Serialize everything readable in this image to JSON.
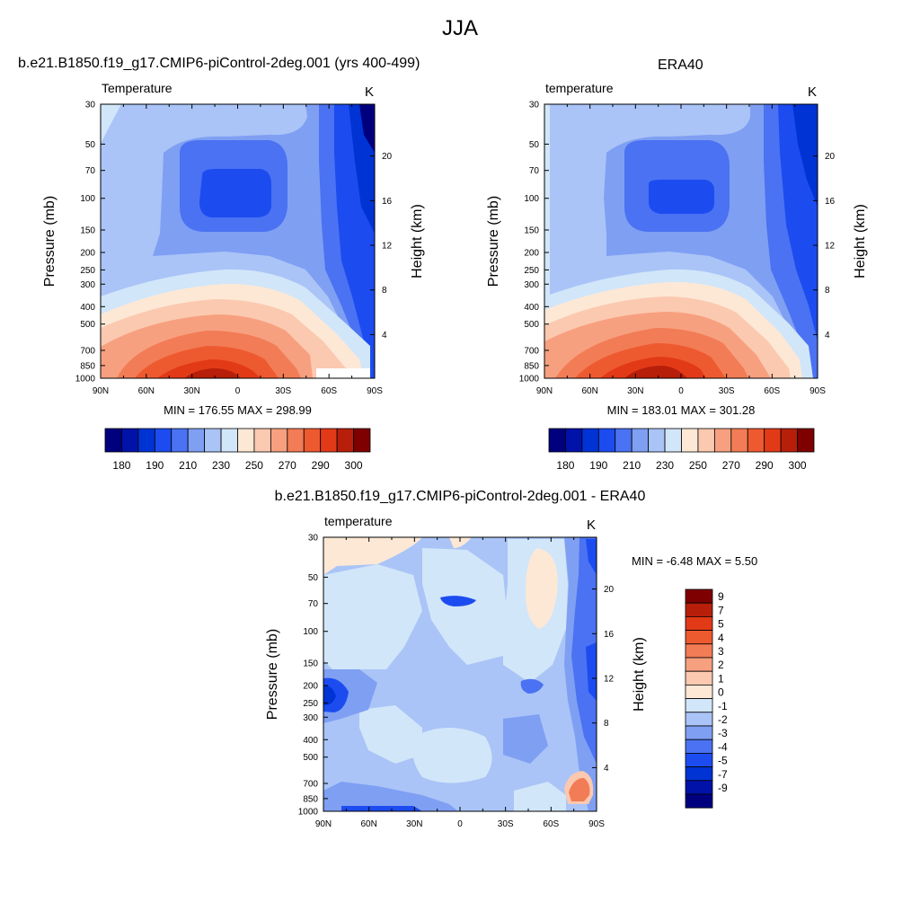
{
  "page": {
    "title": "JJA"
  },
  "colors": {
    "temperature_levels": [
      "#00007f",
      "#0012a8",
      "#0033d4",
      "#1c4cf0",
      "#4a72f2",
      "#7f9ff3",
      "#aac4f7",
      "#d1e6f9",
      "#fde8d6",
      "#fbc9b0",
      "#f7a080",
      "#f27c55",
      "#ee5a30",
      "#e23a17",
      "#b71f0a",
      "#7f0000"
    ],
    "difference_levels": [
      "#00007f",
      "#0012a8",
      "#0033d4",
      "#1c4cf0",
      "#4a72f2",
      "#7f9ff3",
      "#aac4f7",
      "#d1e6f9",
      "#fde8d6",
      "#fbc9b0",
      "#f7a080",
      "#f27c55",
      "#ee5a30",
      "#e23a17",
      "#b71f0a",
      "#7f0000"
    ]
  },
  "chart_data": [
    {
      "type": "heatmap",
      "panel_title": "b.e21.B1850.f19_g17.CMIP6-piControl-2deg.001 (yrs 400-499)",
      "field_label": "Temperature",
      "units": "K",
      "ylabel": "Pressure (mb)",
      "ylabel_right": "Height (km)",
      "x_ticks": [
        "90N",
        "60N",
        "30N",
        "0",
        "30S",
        "60S",
        "90S"
      ],
      "y_ticks": [
        "30",
        "50",
        "70",
        "100",
        "150",
        "200",
        "250",
        "300",
        "400",
        "500",
        "700",
        "850",
        "1000"
      ],
      "y_right_ticks": [
        "4",
        "8",
        "12",
        "16",
        "20"
      ],
      "stats": "MIN = 176.55  MAX = 298.99",
      "min": 176.55,
      "max": 298.99,
      "colorbar_labels": [
        "180",
        "190",
        "210",
        "230",
        "250",
        "270",
        "290",
        "300"
      ],
      "colorbar_orientation": "horizontal"
    },
    {
      "type": "heatmap",
      "panel_title": "ERA40",
      "field_label": "temperature",
      "units": "K",
      "ylabel": "Pressure (mb)",
      "ylabel_right": "Height (km)",
      "x_ticks": [
        "90N",
        "60N",
        "30N",
        "0",
        "30S",
        "60S",
        "90S"
      ],
      "y_ticks": [
        "30",
        "50",
        "70",
        "100",
        "150",
        "200",
        "250",
        "300",
        "400",
        "500",
        "700",
        "850",
        "1000"
      ],
      "y_right_ticks": [
        "4",
        "8",
        "12",
        "16",
        "20"
      ],
      "stats": "MIN = 183.01  MAX = 301.28",
      "min": 183.01,
      "max": 301.28,
      "colorbar_labels": [
        "180",
        "190",
        "210",
        "230",
        "250",
        "270",
        "290",
        "300"
      ],
      "colorbar_orientation": "horizontal"
    },
    {
      "type": "heatmap",
      "panel_title": "b.e21.B1850.f19_g17.CMIP6-piControl-2deg.001 - ERA40",
      "field_label": "temperature",
      "units": "K",
      "ylabel": "Pressure (mb)",
      "ylabel_right": "Height (km)",
      "x_ticks": [
        "90N",
        "60N",
        "30N",
        "0",
        "30S",
        "60S",
        "90S"
      ],
      "y_ticks": [
        "30",
        "50",
        "70",
        "100",
        "150",
        "200",
        "250",
        "300",
        "400",
        "500",
        "700",
        "850",
        "1000"
      ],
      "y_right_ticks": [
        "4",
        "8",
        "12",
        "16",
        "20"
      ],
      "stats": "MIN =  -6.48  MAX =   5.50",
      "min": -6.48,
      "max": 5.5,
      "colorbar_labels": [
        "9",
        "7",
        "5",
        "4",
        "3",
        "2",
        "1",
        "0",
        "-1",
        "-2",
        "-3",
        "-4",
        "-5",
        "-7",
        "-9"
      ],
      "colorbar_orientation": "vertical"
    }
  ]
}
